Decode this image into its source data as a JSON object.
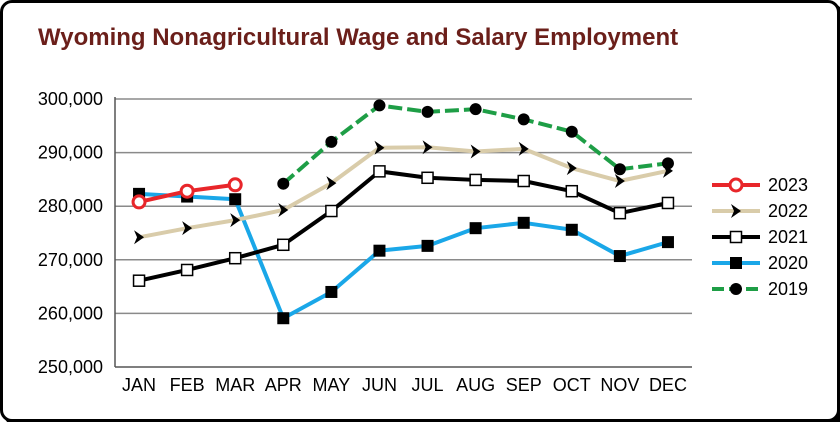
{
  "chart_data": {
    "type": "line",
    "title": "Wyoming Nonagricultural Wage and Salary Employment",
    "xlabel": "",
    "ylabel": "",
    "categories": [
      "JAN",
      "FEB",
      "MAR",
      "APR",
      "MAY",
      "JUN",
      "JUL",
      "AUG",
      "SEP",
      "OCT",
      "NOV",
      "DEC"
    ],
    "ylim": [
      250000,
      300000
    ],
    "yticks": [
      250000,
      260000,
      270000,
      280000,
      290000,
      300000
    ],
    "ytick_labels": [
      "250,000",
      "260,000",
      "270,000",
      "280,000",
      "290,000",
      "300,000"
    ],
    "grid": "horizontal",
    "legend_position": "right",
    "series": [
      {
        "name": "2023",
        "color": "#e8262a",
        "marker": "open-circle",
        "dash": "solid",
        "values": [
          280800,
          282800,
          284000,
          null,
          null,
          null,
          null,
          null,
          null,
          null,
          null,
          null
        ]
      },
      {
        "name": "2022",
        "color": "#d9ccaa",
        "marker": "arrow",
        "dash": "solid",
        "values": [
          274200,
          275900,
          277400,
          279300,
          284300,
          290900,
          291000,
          290200,
          290700,
          287100,
          284700,
          286600
        ]
      },
      {
        "name": "2021",
        "color": "#000000",
        "marker": "open-square",
        "dash": "solid",
        "values": [
          266100,
          268100,
          270300,
          272800,
          279100,
          286500,
          285300,
          284900,
          284700,
          282800,
          278700,
          280600
        ]
      },
      {
        "name": "2020",
        "color": "#1aa7e8",
        "marker": "filled-square",
        "dash": "solid",
        "values": [
          282300,
          281800,
          281300,
          259100,
          264000,
          271700,
          272600,
          275900,
          276900,
          275600,
          270700,
          273300
        ]
      },
      {
        "name": "2019",
        "color": "#1e9e46",
        "marker": "filled-circle",
        "dash": "dashed",
        "values": [
          null,
          null,
          null,
          284200,
          292000,
          298800,
          297600,
          298100,
          296200,
          293900,
          286900,
          288000
        ]
      }
    ]
  }
}
